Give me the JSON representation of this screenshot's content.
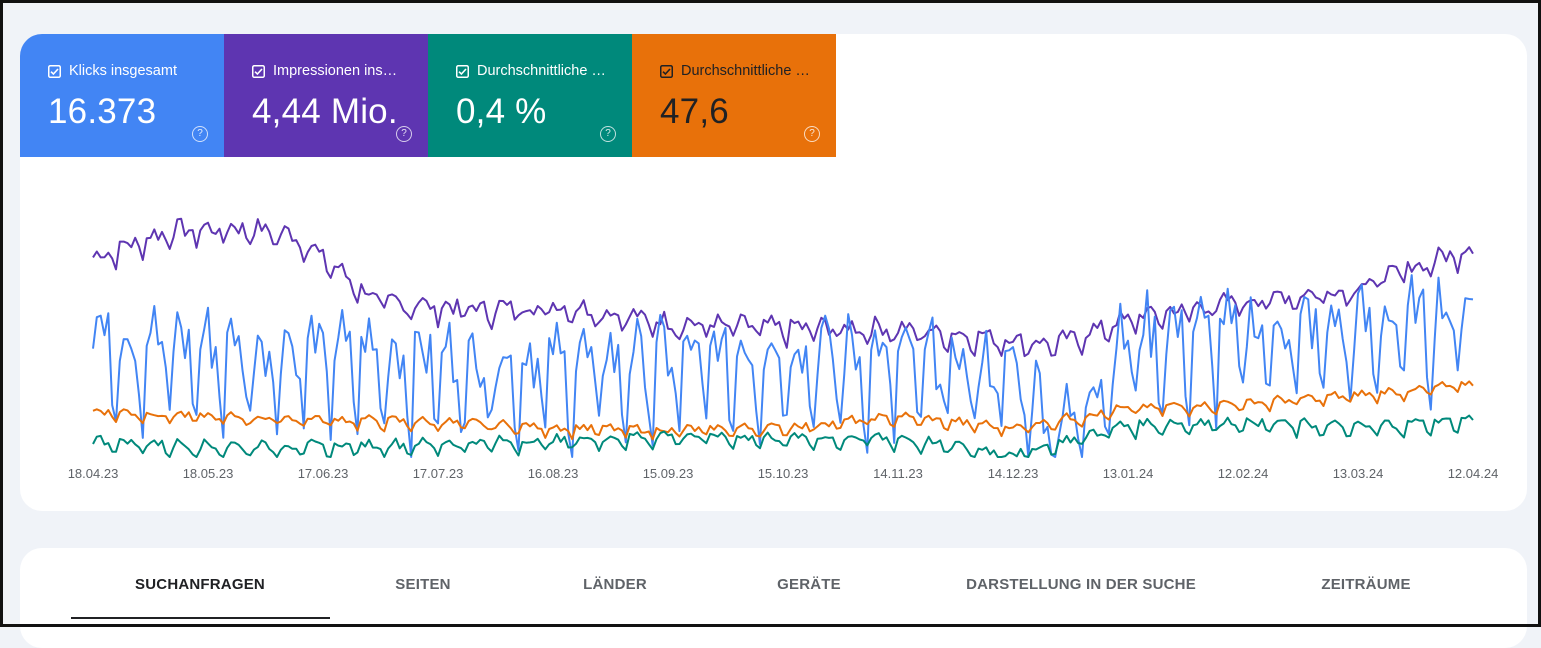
{
  "metrics": [
    {
      "label": "Klicks insgesamt",
      "value": "16.373",
      "color": "#4285f4"
    },
    {
      "label": "Impressionen ins…",
      "value": "4,44 Mio.",
      "color": "#5e35b1"
    },
    {
      "label": "Durchschnittliche …",
      "value": "0,4 %",
      "color": "#00897b"
    },
    {
      "label": "Durchschnittliche …",
      "value": "47,6",
      "color": "#e8710a"
    }
  ],
  "help_glyph": "?",
  "check_glyph": "✓",
  "chart_data": {
    "type": "line",
    "x_tick_labels": [
      "18.04.23",
      "18.05.23",
      "17.06.23",
      "17.07.23",
      "16.08.23",
      "15.09.23",
      "15.10.23",
      "14.11.23",
      "14.12.23",
      "13.01.24",
      "12.02.24",
      "13.03.24",
      "12.04.24"
    ],
    "x_range": [
      "18.04.23",
      "12.04.24"
    ],
    "grid": false,
    "series": [
      {
        "color": "#5e35b1",
        "x": [
          "18.04.23",
          "08.05.23",
          "28.05.23",
          "10.06.23",
          "01.07.23",
          "25.07.23",
          "20.08.23",
          "15.09.23",
          "15.10.23",
          "10.11.23",
          "05.12.23",
          "25.12.23",
          "15.01.24",
          "12.02.24",
          "10.03.24",
          "12.04.24"
        ],
        "values": [
          0.74,
          0.84,
          0.85,
          0.82,
          0.58,
          0.55,
          0.56,
          0.5,
          0.48,
          0.48,
          0.45,
          0.42,
          0.52,
          0.58,
          0.62,
          0.78
        ]
      },
      {
        "color": "#4285f4",
        "x": [
          "18.04.23",
          "08.05.23",
          "28.05.23",
          "17.06.23",
          "17.07.23",
          "16.08.23",
          "15.09.23",
          "15.10.23",
          "14.11.23",
          "14.12.23",
          "27.12.23",
          "13.01.24",
          "12.02.24",
          "13.03.24",
          "12.04.24"
        ],
        "values": [
          0.45,
          0.42,
          0.4,
          0.4,
          0.36,
          0.35,
          0.36,
          0.4,
          0.36,
          0.33,
          0.1,
          0.45,
          0.47,
          0.48,
          0.56
        ]
      },
      {
        "color": "#e8710a",
        "x": [
          "18.04.23",
          "18.05.23",
          "17.06.23",
          "17.07.23",
          "16.08.23",
          "15.09.23",
          "15.10.23",
          "14.11.23",
          "14.12.23",
          "13.01.24",
          "12.02.24",
          "13.03.24",
          "12.04.24"
        ],
        "values": [
          0.17,
          0.15,
          0.14,
          0.13,
          0.11,
          0.1,
          0.11,
          0.15,
          0.11,
          0.18,
          0.2,
          0.23,
          0.27
        ]
      },
      {
        "color": "#00897b",
        "x": [
          "18.04.23",
          "18.05.23",
          "17.06.23",
          "17.07.23",
          "16.08.23",
          "15.09.23",
          "15.10.23",
          "14.11.23",
          "14.12.23",
          "13.01.24",
          "12.02.24",
          "13.03.24",
          "12.04.24"
        ],
        "values": [
          0.06,
          0.04,
          0.04,
          0.05,
          0.06,
          0.08,
          0.07,
          0.07,
          0.01,
          0.12,
          0.13,
          0.11,
          0.14
        ]
      }
    ]
  },
  "tabs": [
    {
      "label": "SUCHANFRAGEN",
      "active": true
    },
    {
      "label": "SEITEN",
      "active": false
    },
    {
      "label": "LÄNDER",
      "active": false
    },
    {
      "label": "GERÄTE",
      "active": false
    },
    {
      "label": "DARSTELLUNG IN DER SUCHE",
      "active": false
    },
    {
      "label": "ZEITRÄUME",
      "active": false
    }
  ]
}
